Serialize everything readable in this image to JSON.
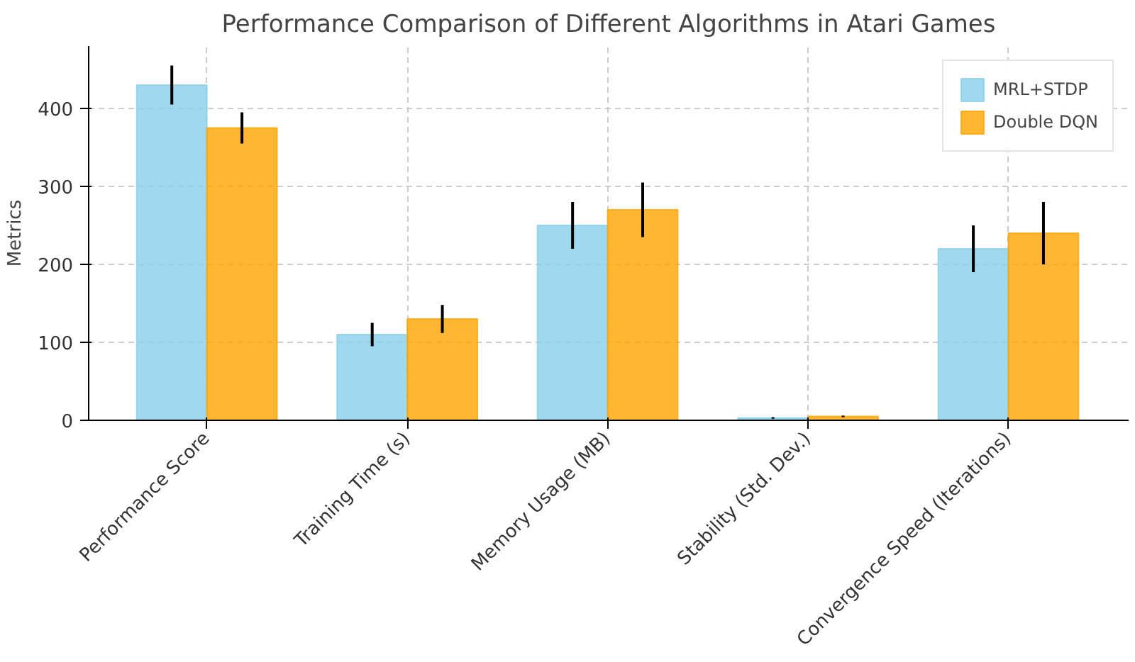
{
  "chart_data": {
    "type": "bar",
    "title": "Performance Comparison of Different Algorithms in Atari Games",
    "ylabel": "Metrics",
    "categories": [
      "Performance Score",
      "Training Time (s)",
      "Memory Usage (MB)",
      "Stability (Std. Dev.)",
      "Convergence Speed (Iterations)"
    ],
    "series": [
      {
        "name": "MRL+STDP",
        "color": "#87ceeb",
        "values": [
          430,
          110,
          250,
          3,
          220
        ],
        "errors": [
          25,
          15,
          30,
          1,
          30
        ]
      },
      {
        "name": "Double DQN",
        "color": "#ffa500",
        "values": [
          375,
          130,
          270,
          5,
          240
        ],
        "errors": [
          20,
          18,
          35,
          1,
          40
        ]
      }
    ],
    "ylim": [
      0,
      480
    ],
    "yticks": [
      0,
      100,
      200,
      300,
      400
    ],
    "grid": true,
    "legend": "top right"
  }
}
